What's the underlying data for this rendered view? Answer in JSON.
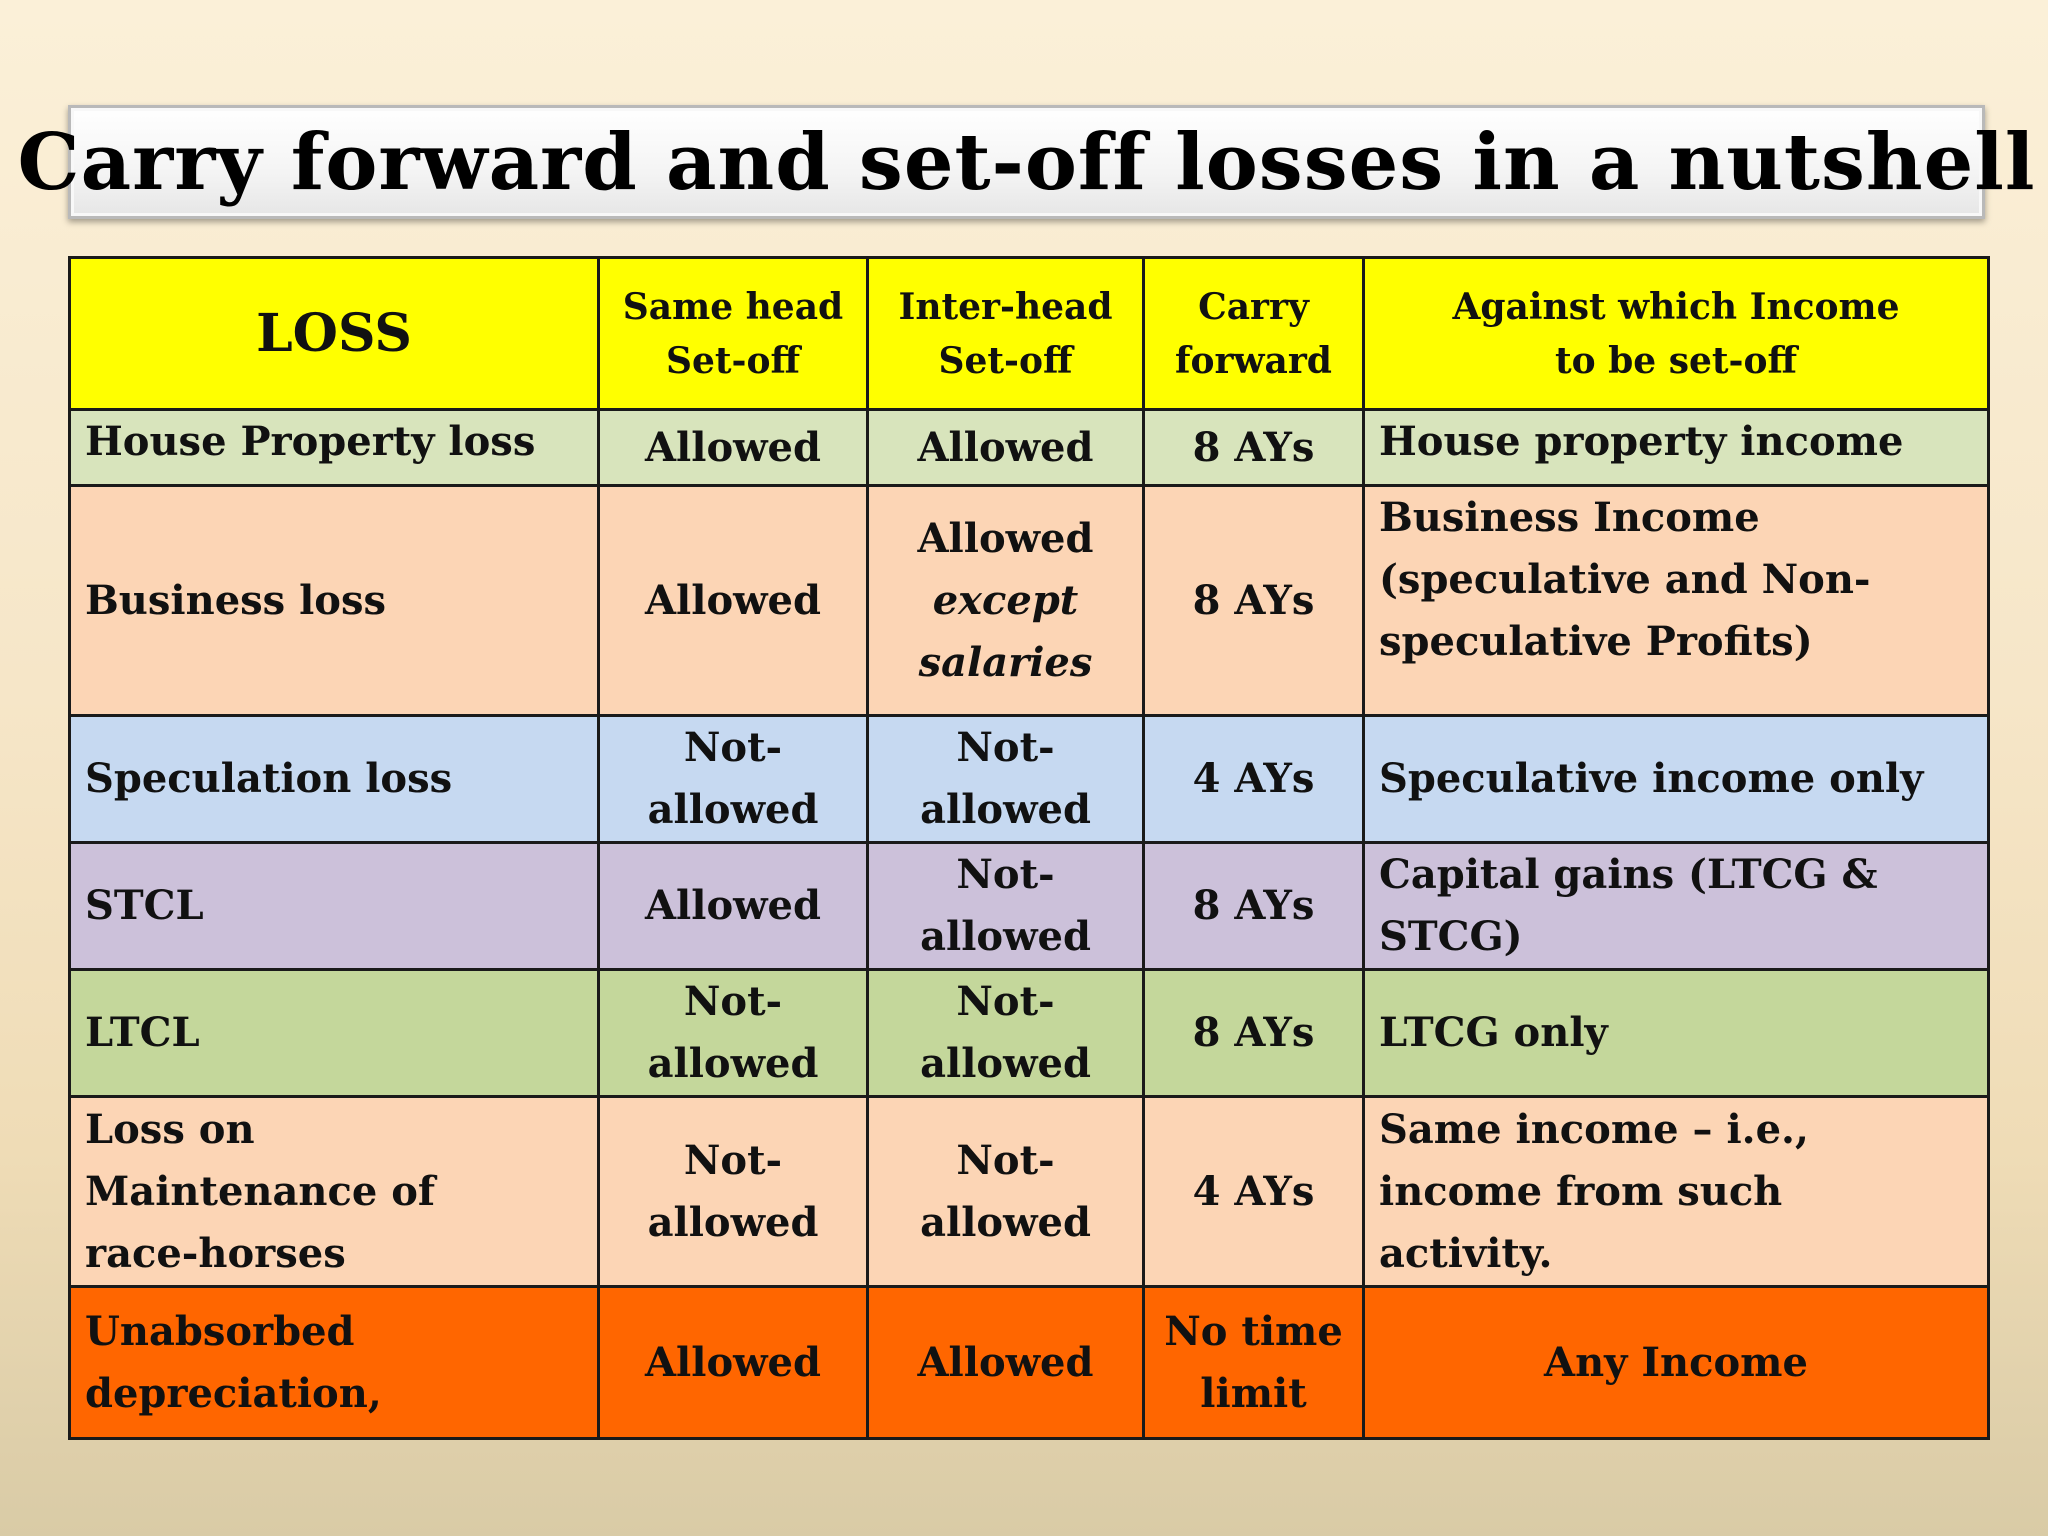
{
  "title": "Carry forward and set-off losses in a nutshell",
  "table": {
    "headers": {
      "loss": "LOSS",
      "same_head": [
        "Same head",
        "Set-off"
      ],
      "inter_head": [
        "Inter-head",
        "Set-off"
      ],
      "carry_forward": [
        "Carry",
        "forward"
      ],
      "against": [
        "Against which Income",
        "to be set-off"
      ]
    },
    "rows": [
      {
        "loss": [
          "House Property loss"
        ],
        "same_head": [
          "Allowed"
        ],
        "inter_head": [
          "Allowed"
        ],
        "inter_head_italic": [],
        "carry_forward": [
          "8 AYs"
        ],
        "against": [
          "House property income"
        ]
      },
      {
        "loss": [
          "Business loss"
        ],
        "same_head": [
          "Allowed"
        ],
        "inter_head": [
          "Allowed"
        ],
        "inter_head_italic": [
          "except",
          "salaries"
        ],
        "carry_forward": [
          "8 AYs"
        ],
        "against": [
          "Business Income",
          "(speculative and Non-",
          "speculative Profits)"
        ]
      },
      {
        "loss": [
          "Speculation loss"
        ],
        "same_head": [
          "Not-",
          "allowed"
        ],
        "inter_head": [
          "Not-",
          "allowed"
        ],
        "inter_head_italic": [],
        "carry_forward": [
          "4 AYs"
        ],
        "against": [
          "Speculative income only"
        ]
      },
      {
        "loss": [
          "STCL"
        ],
        "same_head": [
          "Allowed"
        ],
        "inter_head": [
          "Not-",
          "allowed"
        ],
        "inter_head_italic": [],
        "carry_forward": [
          "8 AYs"
        ],
        "against": [
          "Capital gains (LTCG &",
          "STCG)"
        ]
      },
      {
        "loss": [
          "LTCL"
        ],
        "same_head": [
          "Not-",
          "allowed"
        ],
        "inter_head": [
          "Not-",
          "allowed"
        ],
        "inter_head_italic": [],
        "carry_forward": [
          "8 AYs"
        ],
        "against": [
          "LTCG only"
        ]
      },
      {
        "loss": [
          "Loss on",
          "Maintenance of",
          "race-horses"
        ],
        "same_head": [
          "Not-",
          "allowed"
        ],
        "inter_head": [
          "Not-",
          "allowed"
        ],
        "inter_head_italic": [],
        "carry_forward": [
          "4 AYs"
        ],
        "against": [
          "Same income – i.e.,",
          "income from such",
          "activity."
        ]
      },
      {
        "loss": [
          "Unabsorbed",
          "depreciation,"
        ],
        "same_head": [
          "Allowed"
        ],
        "inter_head": [
          "Allowed"
        ],
        "inter_head_italic": [],
        "carry_forward": [
          "No time",
          "limit"
        ],
        "against": [
          "Any Income"
        ]
      }
    ]
  },
  "colors": {
    "header_bg": "#ffff00",
    "house_property_bg": "#d8e4bc",
    "business_bg": "#fcd5b5",
    "speculation_bg": "#c6d9f1",
    "stcl_bg": "#ccc1da",
    "ltcl_bg": "#c4d79b",
    "race_horses_bg": "#fcd5b5",
    "unabsorbed_bg": "#ff6600"
  }
}
